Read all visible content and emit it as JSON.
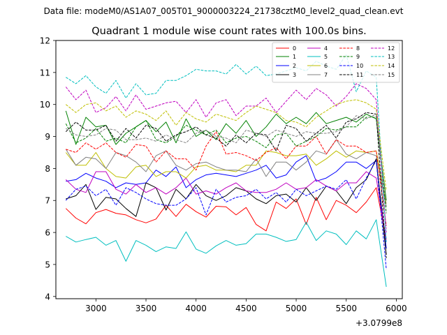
{
  "chart_data": {
    "type": "line",
    "suptitle": "Data file: modeM0/AS1A07_005T01_9000003224_21738cztM0_level2_quad_clean.evt",
    "title": "Quadrant 1 module wise count rates with 100.0s bins.",
    "xlabel": "",
    "ylabel": "",
    "x_offset_label": "+3.0799e8",
    "xlim": [
      2600,
      6060
    ],
    "ylim": [
      3.93,
      12.0
    ],
    "xticks": [
      3000,
      3500,
      4000,
      4500,
      5000,
      5500,
      6000
    ],
    "yticks": [
      4,
      5,
      6,
      7,
      8,
      9,
      10,
      11,
      12
    ],
    "legend_position": "top-right",
    "x": [
      2700,
      2800,
      2900,
      3000,
      3100,
      3200,
      3300,
      3400,
      3500,
      3600,
      3700,
      3800,
      3900,
      4000,
      4100,
      4200,
      4300,
      4400,
      4500,
      4600,
      4700,
      4800,
      4900,
      5000,
      5100,
      5200,
      5300,
      5400,
      5500,
      5600,
      5700,
      5800,
      5900
    ],
    "series": [
      {
        "name": "0",
        "color": "#ff0000",
        "dash": "solid",
        "values": [
          6.75,
          6.45,
          6.27,
          6.62,
          6.72,
          6.6,
          6.55,
          6.4,
          6.3,
          6.42,
          6.85,
          6.5,
          6.88,
          6.65,
          6.48,
          6.82,
          6.8,
          6.55,
          6.78,
          6.25,
          6.05,
          6.95,
          6.75,
          7.05,
          6.25,
          7.1,
          6.4,
          7.0,
          6.85,
          6.62,
          6.95,
          7.4,
          5.8
        ]
      },
      {
        "name": "1",
        "color": "#008000",
        "dash": "solid",
        "values": [
          9.8,
          8.75,
          9.6,
          9.3,
          9.35,
          8.75,
          9.1,
          9.3,
          9.5,
          9.15,
          9.45,
          8.8,
          9.55,
          9.0,
          9.2,
          8.9,
          9.4,
          9.1,
          9.5,
          9.0,
          9.3,
          9.7,
          9.4,
          9.6,
          9.4,
          9.75,
          9.4,
          9.5,
          9.6,
          9.45,
          9.7,
          9.55,
          7.0
        ]
      },
      {
        "name": "2",
        "color": "#0000ff",
        "dash": "solid",
        "values": [
          7.6,
          7.65,
          7.85,
          7.7,
          7.6,
          7.4,
          7.55,
          7.5,
          7.55,
          7.95,
          7.75,
          8.05,
          7.4,
          7.65,
          7.8,
          7.85,
          7.8,
          7.75,
          7.85,
          7.95,
          8.1,
          7.7,
          7.8,
          8.2,
          8.4,
          7.6,
          7.7,
          7.9,
          8.2,
          8.2,
          8.0,
          8.25,
          5.5
        ]
      },
      {
        "name": "3",
        "color": "#000000",
        "dash": "solid",
        "values": [
          7.05,
          7.15,
          7.5,
          6.72,
          7.1,
          7.05,
          6.75,
          6.5,
          7.55,
          7.4,
          6.7,
          7.35,
          7.05,
          7.5,
          7.15,
          7.0,
          7.15,
          7.4,
          7.3,
          7.05,
          6.9,
          7.15,
          7.2,
          6.95,
          7.4,
          7.0,
          7.45,
          7.3,
          6.9,
          7.4,
          7.65,
          8.3,
          5.3
        ]
      },
      {
        "name": "4",
        "color": "#bf00bf",
        "dash": "solid",
        "values": [
          7.65,
          7.35,
          7.25,
          7.9,
          7.9,
          7.35,
          7.2,
          7.5,
          7.25,
          7.4,
          7.2,
          7.4,
          7.7,
          7.2,
          7.3,
          7.2,
          7.4,
          7.55,
          7.3,
          7.25,
          7.25,
          7.35,
          7.55,
          7.35,
          7.4,
          7.65,
          7.45,
          7.3,
          7.55,
          7.55,
          7.9,
          7.7,
          5.75
        ]
      },
      {
        "name": "5",
        "color": "#00bfbf",
        "dash": "solid",
        "values": [
          5.88,
          5.7,
          5.78,
          5.85,
          5.6,
          5.75,
          5.1,
          5.75,
          5.6,
          5.4,
          5.55,
          5.5,
          6.02,
          5.48,
          5.35,
          5.58,
          5.75,
          5.6,
          5.65,
          5.95,
          5.95,
          5.85,
          5.72,
          5.78,
          6.32,
          5.75,
          6.05,
          5.95,
          5.62,
          6.05,
          5.8,
          6.4,
          4.3
        ]
      },
      {
        "name": "6",
        "color": "#bfbf00",
        "dash": "solid",
        "values": [
          8.5,
          8.1,
          8.1,
          8.5,
          8.0,
          7.75,
          7.7,
          8.05,
          8.1,
          7.75,
          7.9,
          7.9,
          7.7,
          8.05,
          8.1,
          7.95,
          7.95,
          7.9,
          8.1,
          8.1,
          8.55,
          8.5,
          8.4,
          8.4,
          8.45,
          8.1,
          8.3,
          8.55,
          8.35,
          8.55,
          8.5,
          8.55,
          6.9
        ]
      },
      {
        "name": "7",
        "color": "#808080",
        "dash": "solid",
        "values": [
          8.6,
          8.1,
          8.35,
          8.3,
          8.0,
          8.5,
          8.4,
          8.2,
          7.9,
          8.4,
          8.55,
          8.1,
          7.95,
          8.15,
          8.2,
          8.05,
          7.95,
          7.95,
          7.9,
          8.3,
          7.75,
          8.2,
          8.2,
          7.95,
          8.2,
          8.55,
          8.45,
          8.9,
          8.45,
          8.3,
          8.5,
          8.4,
          6.8
        ]
      },
      {
        "name": "8",
        "color": "#ff0000",
        "dash": "dashed",
        "values": [
          8.6,
          8.5,
          8.8,
          8.6,
          8.8,
          8.5,
          8.35,
          8.75,
          8.7,
          8.2,
          8.55,
          8.3,
          8.3,
          7.95,
          8.7,
          9.15,
          8.45,
          8.5,
          8.4,
          8.25,
          8.5,
          8.65,
          8.3,
          8.7,
          8.7,
          9.0,
          8.45,
          8.9,
          8.7,
          8.7,
          8.5,
          8.55,
          6.2
        ]
      },
      {
        "name": "9",
        "color": "#008000",
        "dash": "dashed",
        "values": [
          9.4,
          8.8,
          8.95,
          9.25,
          8.85,
          8.95,
          8.8,
          9.3,
          9.5,
          8.9,
          8.8,
          9.0,
          9.35,
          9.2,
          9.05,
          9.2,
          8.8,
          8.95,
          9.0,
          8.85,
          8.65,
          9.05,
          9.1,
          8.7,
          8.85,
          9.0,
          9.25,
          9.2,
          9.3,
          9.3,
          9.6,
          9.6,
          6.6
        ]
      },
      {
        "name": "10",
        "color": "#0000ff",
        "dash": "dashed",
        "values": [
          7.0,
          7.35,
          7.45,
          7.15,
          7.35,
          6.85,
          7.4,
          7.25,
          7.05,
          6.9,
          6.85,
          6.85,
          7.05,
          7.4,
          6.55,
          7.35,
          6.95,
          7.1,
          7.15,
          7.35,
          7.05,
          7.25,
          6.95,
          7.35,
          7.15,
          7.3,
          7.45,
          7.35,
          7.65,
          7.05,
          7.7,
          8.25,
          4.85
        ]
      },
      {
        "name": "11",
        "color": "#000000",
        "dash": "dashed",
        "values": [
          9.15,
          9.45,
          9.2,
          9.2,
          9.35,
          8.85,
          9.25,
          8.95,
          9.35,
          9.25,
          8.85,
          9.05,
          9.15,
          9.3,
          9.05,
          8.95,
          8.7,
          9.05,
          8.8,
          9.1,
          9.05,
          8.55,
          9.35,
          9.25,
          8.85,
          9.1,
          9.35,
          8.95,
          9.45,
          9.55,
          9.75,
          9.7,
          5.2
        ]
      },
      {
        "name": "12",
        "color": "#bf00bf",
        "dash": "dashed",
        "values": [
          10.55,
          10.15,
          10.45,
          9.75,
          9.9,
          10.25,
          9.8,
          10.3,
          9.85,
          9.95,
          10.05,
          10.1,
          9.75,
          10.15,
          9.6,
          10.05,
          10.15,
          9.65,
          9.95,
          9.95,
          10.2,
          9.75,
          10.1,
          10.45,
          10.15,
          10.5,
          10.3,
          9.95,
          10.25,
          10.65,
          10.5,
          10.15,
          6.0
        ]
      },
      {
        "name": "13",
        "color": "#00bfbf",
        "dash": "dashed",
        "values": [
          10.85,
          10.65,
          10.9,
          10.55,
          10.35,
          10.75,
          10.2,
          10.65,
          10.3,
          10.35,
          10.75,
          10.75,
          10.9,
          11.1,
          11.05,
          11.05,
          10.95,
          11.25,
          10.95,
          11.2,
          10.9,
          10.95,
          11.05,
          11.15,
          11.05,
          11.35,
          11.2,
          11.1,
          11.55,
          10.4,
          11.05,
          10.85,
          5.7
        ]
      },
      {
        "name": "14",
        "color": "#bfbf00",
        "dash": "dashed",
        "values": [
          10.0,
          9.75,
          10.0,
          10.05,
          9.8,
          9.95,
          9.6,
          9.8,
          9.7,
          9.5,
          9.8,
          9.35,
          9.75,
          9.55,
          9.45,
          9.7,
          9.6,
          9.5,
          9.75,
          9.95,
          9.85,
          9.75,
          9.5,
          9.45,
          9.3,
          9.6,
          9.8,
          10.0,
          10.1,
          10.15,
          10.05,
          9.85,
          7.3
        ]
      },
      {
        "name": "15",
        "color": "#808080",
        "dash": "dashed",
        "values": [
          9.25,
          9.05,
          9.0,
          9.05,
          9.25,
          9.2,
          8.9,
          8.9,
          8.95,
          8.85,
          9.05,
          8.9,
          8.8,
          9.1,
          9.2,
          9.0,
          8.95,
          8.8,
          9.2,
          9.1,
          9.0,
          9.2,
          9.1,
          9.0,
          9.15,
          9.1,
          9.1,
          9.15,
          9.3,
          9.65,
          9.55,
          9.7,
          6.8
        ]
      }
    ]
  }
}
